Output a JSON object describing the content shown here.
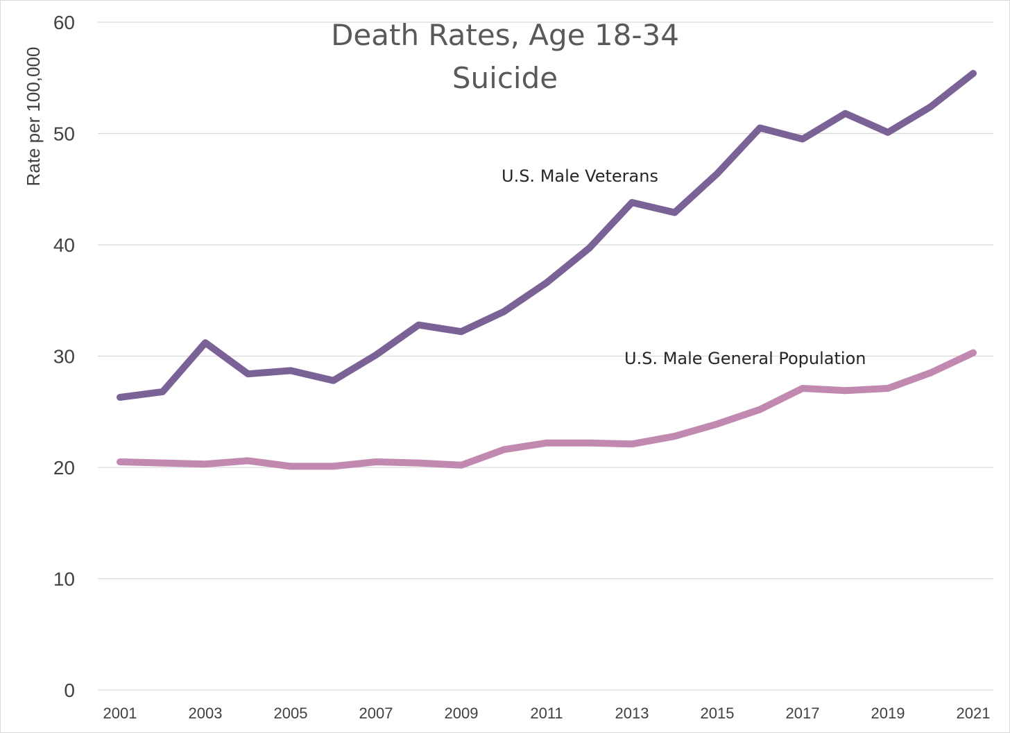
{
  "chart_data": {
    "type": "line",
    "title": "Death Rates, Age 18-34",
    "subtitle": "Suicide",
    "xlabel": "",
    "ylabel": "Rate per 100,000",
    "ylim": [
      0,
      60
    ],
    "yticks": [
      0,
      10,
      20,
      30,
      40,
      50,
      60
    ],
    "x": [
      2001,
      2002,
      2003,
      2004,
      2005,
      2006,
      2007,
      2008,
      2009,
      2010,
      2011,
      2012,
      2013,
      2014,
      2015,
      2016,
      2017,
      2018,
      2019,
      2020,
      2021
    ],
    "xtick_labels": [
      "2001",
      "2003",
      "2005",
      "2007",
      "2009",
      "2011",
      "2013",
      "2015",
      "2017",
      "2019",
      "2021"
    ],
    "grid": true,
    "legend": "none",
    "series": [
      {
        "name": "U.S. Male Veterans",
        "color": "#7a6196",
        "values": [
          26.3,
          26.8,
          31.2,
          28.4,
          28.7,
          27.8,
          30.1,
          32.8,
          32.2,
          34.0,
          36.6,
          39.7,
          43.8,
          42.9,
          46.4,
          50.5,
          49.5,
          51.8,
          50.1,
          52.4,
          55.4
        ]
      },
      {
        "name": "U.S. Male General Population",
        "color": "#c289b0",
        "values": [
          20.5,
          20.4,
          20.3,
          20.6,
          20.1,
          20.1,
          20.5,
          20.4,
          20.2,
          21.6,
          22.2,
          22.2,
          22.1,
          22.8,
          23.9,
          25.2,
          27.1,
          26.9,
          27.1,
          28.5,
          30.3
        ]
      }
    ]
  }
}
